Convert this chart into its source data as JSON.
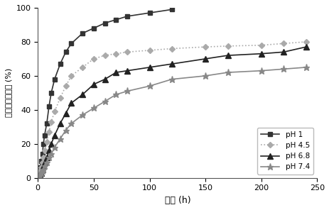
{
  "title": "",
  "xlabel": "时间 (h)",
  "ylabel": "累积释放百分率 (%)",
  "xlim": [
    0,
    250
  ],
  "ylim": [
    0,
    100
  ],
  "xticks": [
    0,
    50,
    100,
    150,
    200,
    250
  ],
  "yticks": [
    0,
    20,
    40,
    60,
    80,
    100
  ],
  "series": [
    {
      "label": "pH 1",
      "color": "#333333",
      "linestyle": "-",
      "marker": "s",
      "markersize": 4.5,
      "linewidth": 1.2,
      "x": [
        0,
        1,
        2,
        3,
        4,
        5,
        6,
        8,
        10,
        12,
        15,
        20,
        25,
        30,
        40,
        50,
        60,
        70,
        80,
        100,
        120
      ],
      "y": [
        0,
        3,
        6,
        10,
        14,
        20,
        25,
        32,
        42,
        50,
        58,
        67,
        74,
        79,
        85,
        88,
        91,
        93,
        95,
        97,
        99
      ]
    },
    {
      "label": "pH 4.5",
      "color": "#aaaaaa",
      "linestyle": ":",
      "marker": "D",
      "markersize": 4.5,
      "linewidth": 1.2,
      "x": [
        0,
        1,
        2,
        3,
        4,
        5,
        6,
        8,
        10,
        12,
        15,
        20,
        25,
        30,
        40,
        50,
        60,
        70,
        80,
        100,
        120,
        150,
        170,
        200,
        220,
        240
      ],
      "y": [
        0,
        2,
        4,
        6,
        9,
        12,
        16,
        21,
        27,
        33,
        39,
        47,
        54,
        60,
        65,
        70,
        72,
        73,
        74,
        75,
        76,
        77,
        77.5,
        78,
        79,
        80
      ]
    },
    {
      "label": "pH 6.8",
      "color": "#222222",
      "linestyle": "-",
      "marker": "^",
      "markersize": 5.5,
      "linewidth": 1.2,
      "x": [
        0,
        1,
        2,
        3,
        4,
        5,
        6,
        8,
        10,
        12,
        15,
        20,
        25,
        30,
        40,
        50,
        60,
        70,
        80,
        100,
        120,
        150,
        170,
        200,
        220,
        240
      ],
      "y": [
        0,
        1,
        2,
        3,
        5,
        7,
        9,
        12,
        16,
        20,
        25,
        32,
        38,
        44,
        49,
        55,
        58,
        62,
        63,
        65,
        67,
        70,
        72,
        73,
        74,
        77
      ]
    },
    {
      "label": "pH 7.4",
      "color": "#888888",
      "linestyle": "-",
      "marker": "*",
      "markersize": 6.5,
      "linewidth": 1.2,
      "x": [
        0,
        1,
        2,
        3,
        4,
        5,
        6,
        8,
        10,
        12,
        15,
        20,
        25,
        30,
        40,
        50,
        60,
        70,
        80,
        100,
        120,
        150,
        170,
        200,
        220,
        240
      ],
      "y": [
        0,
        1,
        2,
        3,
        4,
        5,
        7,
        9,
        12,
        14,
        18,
        23,
        28,
        32,
        37,
        41,
        45,
        49,
        51,
        54,
        58,
        60,
        62,
        63,
        64,
        65
      ]
    }
  ],
  "legend_loc": "lower right",
  "background_color": "#ffffff"
}
